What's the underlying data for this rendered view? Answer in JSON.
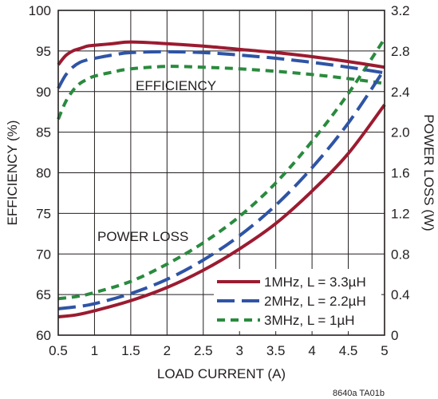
{
  "chart_data": {
    "type": "line",
    "xlabel": "LOAD CURRENT (A)",
    "ylabel": "EFFICIENCY (%)",
    "y2label": "POWER LOSS (W)",
    "xlim": [
      0.5,
      5
    ],
    "ylim": [
      60,
      100
    ],
    "y2lim": [
      0,
      3.2
    ],
    "x_ticks": [
      "0.5",
      "1",
      "1.5",
      "2",
      "2.5",
      "3",
      "3.5",
      "4",
      "4.5",
      "5"
    ],
    "y_ticks": [
      "60",
      "65",
      "70",
      "75",
      "80",
      "85",
      "90",
      "95",
      "100"
    ],
    "y2_ticks": [
      "0",
      "0.4",
      "0.8",
      "1.2",
      "1.6",
      "2.0",
      "2.4",
      "2.8",
      "3.2"
    ],
    "grid": true,
    "legend_position": "bottom-right",
    "annotations": {
      "efficiency": "EFFICIENCY",
      "power_loss": "POWER LOSS"
    },
    "footnote": "8640a TA01b",
    "series": [
      {
        "name": "1MHz, L = 3.3µH",
        "color": "#9b1b30",
        "dash": "solid",
        "efficiency": {
          "x": [
            0.5,
            0.6,
            0.7,
            0.8,
            0.9,
            1.0,
            1.25,
            1.5,
            2.0,
            2.5,
            3.0,
            3.5,
            4.0,
            4.5,
            5.0
          ],
          "y": [
            93.3,
            94.4,
            95.0,
            95.3,
            95.6,
            95.7,
            95.9,
            96.1,
            95.9,
            95.6,
            95.2,
            94.8,
            94.3,
            93.7,
            93.0
          ]
        },
        "power_loss": {
          "x": [
            0.5,
            0.75,
            1.0,
            1.5,
            2.0,
            2.5,
            3.0,
            3.5,
            4.0,
            4.5,
            5.0
          ],
          "y": [
            0.18,
            0.2,
            0.24,
            0.34,
            0.47,
            0.64,
            0.85,
            1.1,
            1.42,
            1.79,
            2.27
          ]
        }
      },
      {
        "name": "2MHz, L = 2.2µH",
        "color": "#2e54a5",
        "dash": "long-dash",
        "efficiency": {
          "x": [
            0.5,
            0.6,
            0.7,
            0.8,
            0.9,
            1.0,
            1.25,
            1.5,
            2.0,
            2.5,
            3.0,
            3.5,
            4.0,
            4.5,
            5.0
          ],
          "y": [
            90.4,
            92.0,
            93.0,
            93.6,
            93.9,
            94.1,
            94.5,
            94.8,
            94.9,
            94.8,
            94.5,
            94.1,
            93.6,
            93.0,
            92.3
          ]
        },
        "power_loss": {
          "x": [
            0.5,
            0.75,
            1.0,
            1.5,
            2.0,
            2.5,
            3.0,
            3.5,
            4.0,
            4.5,
            5.0
          ],
          "y": [
            0.26,
            0.28,
            0.31,
            0.41,
            0.55,
            0.74,
            0.98,
            1.28,
            1.65,
            2.09,
            2.62
          ]
        }
      },
      {
        "name": "3MHz, L = 1µH",
        "color": "#2a8a3e",
        "dash": "short-dash",
        "efficiency": {
          "x": [
            0.5,
            0.6,
            0.7,
            0.8,
            0.9,
            1.0,
            1.25,
            1.5,
            2.0,
            2.5,
            3.0,
            3.5,
            4.0,
            4.5,
            5.0
          ],
          "y": [
            86.6,
            88.7,
            90.1,
            91.0,
            91.5,
            91.9,
            92.4,
            92.8,
            93.1,
            93.0,
            92.8,
            92.5,
            92.1,
            91.6,
            91.0
          ]
        },
        "power_loss": {
          "x": [
            0.5,
            0.75,
            1.0,
            1.5,
            2.0,
            2.5,
            3.0,
            3.5,
            4.0,
            4.5,
            5.0
          ],
          "y": [
            0.36,
            0.38,
            0.42,
            0.53,
            0.7,
            0.91,
            1.17,
            1.5,
            1.91,
            2.38,
            2.92
          ]
        }
      }
    ]
  }
}
